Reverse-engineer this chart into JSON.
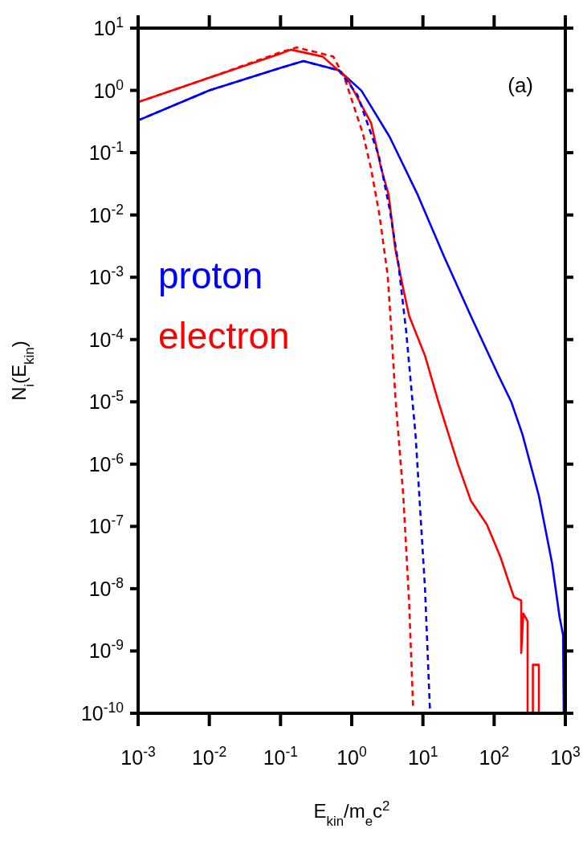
{
  "chart_data": {
    "type": "line",
    "xlabel": "E$_{kin}$/m$_{e}$c$^{2}$",
    "ylabel": "N$_{i}$(E$_{kin}$)",
    "annotations": [
      "(a)"
    ],
    "log": "xy",
    "grid": false,
    "legend": "left",
    "xlim": [
      0.001,
      1000
    ],
    "ylim": [
      1e-10,
      10
    ],
    "xticks": [
      {
        "value": 0.001,
        "label": "10$^{-3}$"
      },
      {
        "value": 0.01,
        "label": "10$^{-2}$"
      },
      {
        "value": 0.1,
        "label": "10$^{-1}$"
      },
      {
        "value": 1,
        "label": "10$^{0}$"
      },
      {
        "value": 10,
        "label": "10$^{1}$"
      },
      {
        "value": 100,
        "label": "10$^{2}$"
      },
      {
        "value": 1000,
        "label": "10$^{3}$"
      }
    ],
    "yticks": [
      {
        "value": 1e-10,
        "label": "10$^{-10}$"
      },
      {
        "value": 1e-09,
        "label": "10$^{-9}$"
      },
      {
        "value": 1e-08,
        "label": "10$^{-8}$"
      },
      {
        "value": 1e-07,
        "label": "10$^{-7}$"
      },
      {
        "value": 1e-06,
        "label": "10$^{-6}$"
      },
      {
        "value": 1e-05,
        "label": "10$^{-5}$"
      },
      {
        "value": 0.0001,
        "label": "10$^{-4}$"
      },
      {
        "value": 0.001,
        "label": "10$^{-3}$"
      },
      {
        "value": 0.01,
        "label": "10$^{-2}$"
      },
      {
        "value": 0.1,
        "label": "10$^{-1}$"
      },
      {
        "value": 1,
        "label": "10$^{0}$"
      },
      {
        "value": 10,
        "label": "10$^{1}$"
      }
    ],
    "series": [
      {
        "name": "proton",
        "color": "#0000ff",
        "line_style": "solid",
        "x": [
          0.001,
          0.01,
          0.1,
          0.21,
          0.66,
          1.37,
          3.4,
          8.3,
          20,
          47,
          114,
          174,
          250,
          425,
          650,
          830,
          930,
          950
        ],
        "values": [
          0.33,
          1.0,
          2.3,
          2.95,
          2.1,
          0.99,
          0.18,
          0.022,
          0.0021,
          0.00024,
          2.7e-05,
          1e-05,
          3e-06,
          3.1e-07,
          2.6e-08,
          3.5e-09,
          1.8e-09,
          1e-10
        ]
      },
      {
        "name": "electron",
        "color": "#ff0000",
        "line_style": "solid",
        "x": [
          0.001,
          0.01,
          0.1,
          0.14,
          0.39,
          0.85,
          1.87,
          2.6,
          3.3,
          4.1,
          5.3,
          6.4,
          10.7,
          16.5,
          31,
          47,
          79,
          123,
          160,
          190,
          240,
          240,
          257,
          295,
          295,
          350,
          350,
          425,
          425
        ],
        "values": [
          0.65,
          1.6,
          3.9,
          4.5,
          3.5,
          1.6,
          0.3,
          0.055,
          0.021,
          0.0028,
          0.00065,
          0.00024,
          5.5e-05,
          1e-05,
          1e-06,
          2.6e-07,
          1.07e-07,
          3.2e-08,
          1.3e-08,
          7.3e-09,
          6.5e-09,
          9.3e-10,
          4e-09,
          3e-09,
          1e-10,
          1e-10,
          6e-10,
          6e-10,
          1e-10
        ]
      },
      {
        "color": "#ff0000",
        "line_style": "dashed",
        "x": [
          0.001,
          0.01,
          0.1,
          0.17,
          0.55,
          0.79,
          1.44,
          1.87,
          2.45,
          3.2,
          3.6,
          4.1,
          4.7,
          5.3,
          6.4,
          7.3
        ],
        "values": [
          0.65,
          1.6,
          4.1,
          4.9,
          3.5,
          1.6,
          0.2,
          0.055,
          0.01,
          0.00107,
          0.00014,
          1.2e-05,
          1.7e-06,
          3.1e-07,
          5.9e-09,
          1.15e-10
        ]
      },
      {
        "color": "#0000ff",
        "line_style": "dashed",
        "x": [
          0.001,
          0.01,
          0.1,
          0.21,
          0.66,
          1.2,
          2.4,
          3.4,
          4.5,
          5.8,
          7.9,
          8.9,
          10.7,
          12.6
        ],
        "values": [
          0.33,
          1.0,
          2.3,
          2.95,
          2.1,
          0.85,
          0.09,
          0.0126,
          0.0017,
          0.00014,
          2.8e-06,
          3.1e-07,
          1e-08,
          1e-10
        ]
      }
    ]
  }
}
